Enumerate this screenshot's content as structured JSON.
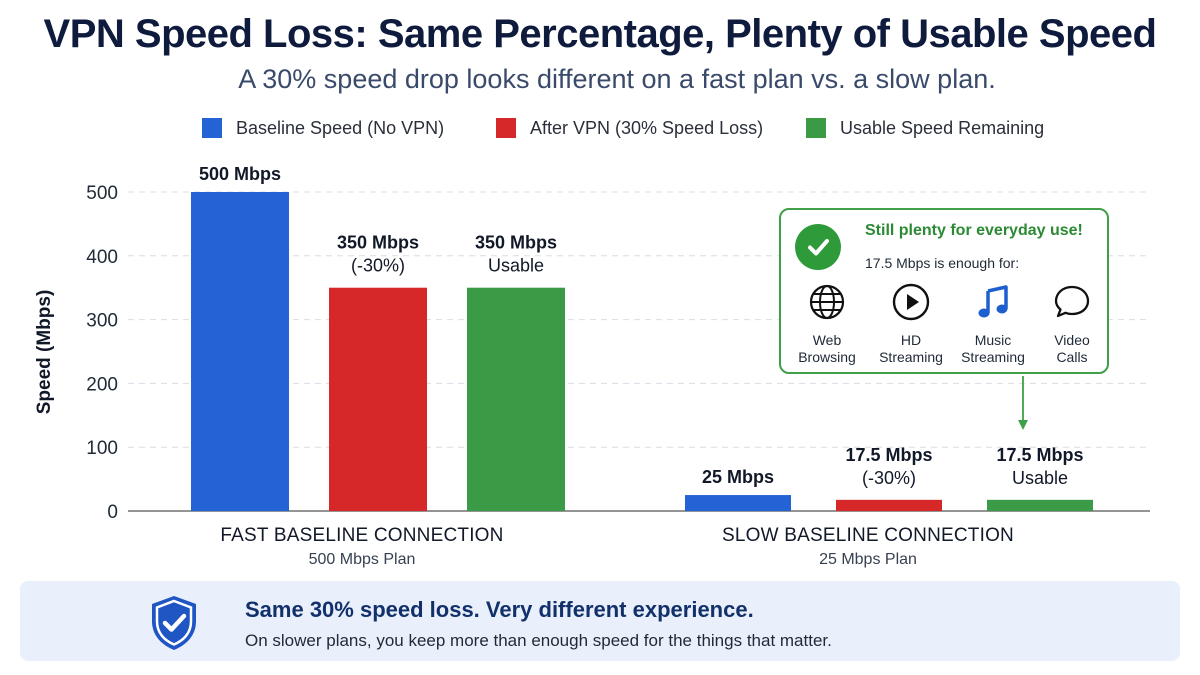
{
  "title": "VPN Speed Loss: Same Percentage, Plenty of Usable Speed",
  "subtitle": "A 30% speed drop looks different on a fast plan vs. a slow plan.",
  "legend": [
    {
      "label": "Baseline Speed (No VPN)",
      "color": "#2463d6"
    },
    {
      "label": "After VPN (30% Speed Loss)",
      "color": "#d62828"
    },
    {
      "label": "Usable Speed Remaining",
      "color": "#3a9a46"
    }
  ],
  "chart_data": {
    "type": "bar",
    "ylabel": "Speed (Mbps)",
    "ylim": [
      0,
      500
    ],
    "yticks": [
      "0",
      "100",
      "200",
      "300",
      "400",
      "500"
    ],
    "grid": true,
    "groups": [
      {
        "title": "FAST BASELINE CONNECTION",
        "subtitle": "500 Mbps Plan",
        "bars": [
          {
            "series": "Baseline Speed (No VPN)",
            "value": 500,
            "label": "500 Mbps",
            "sublabel": ""
          },
          {
            "series": "After VPN (30% Speed Loss)",
            "value": 350,
            "label": "350 Mbps",
            "sublabel": "(-30%)"
          },
          {
            "series": "Usable Speed Remaining",
            "value": 350,
            "label": "350 Mbps",
            "sublabel": "Usable"
          }
        ]
      },
      {
        "title": "SLOW BASELINE CONNECTION",
        "subtitle": "25 Mbps Plan",
        "bars": [
          {
            "series": "Baseline Speed (No VPN)",
            "value": 25,
            "label": "25 Mbps",
            "sublabel": ""
          },
          {
            "series": "After VPN (30% Speed Loss)",
            "value": 17.5,
            "label": "17.5 Mbps",
            "sublabel": "(-30%)"
          },
          {
            "series": "Usable Speed Remaining",
            "value": 17.5,
            "label": "17.5 Mbps",
            "sublabel": "Usable"
          }
        ]
      }
    ]
  },
  "callout": {
    "headline": "Still plenty for everyday use!",
    "subline": "17.5 Mbps is enough for:",
    "uses": [
      {
        "icon": "globe-icon",
        "label": "Web\nBrowsing"
      },
      {
        "icon": "play-icon",
        "label": "HD\nStreaming"
      },
      {
        "icon": "music-note-icon",
        "label": "Music\nStreaming"
      },
      {
        "icon": "chat-bubble-icon",
        "label": "Video\nCalls"
      }
    ],
    "accent": "#2f9a3a"
  },
  "banner": {
    "icon": "shield-check-icon",
    "headline": "Same 30% speed loss. Very different experience.",
    "body": "On slower plans, you keep more than enough speed for the things that matter."
  }
}
